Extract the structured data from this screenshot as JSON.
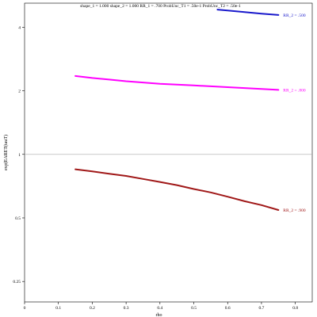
{
  "chart_data": {
    "type": "line",
    "title": "shape_1 = 1.000  shape_2 = 1.000  RR_1 = .700  ProbUnc_T1 = .50e-1  ProbUnc_T2 = .50e-1",
    "xlabel": "rho",
    "ylabel": "exp(EARET(tauT)",
    "xlim": [
      0,
      0.85
    ],
    "ylim": [
      0.2,
      5.2
    ],
    "y_scale": "log",
    "x_ticks": [
      0,
      0.1,
      0.2,
      0.3,
      0.4,
      0.5,
      0.6,
      0.7,
      0.8
    ],
    "x_tick_labels": [
      "0",
      "0.1",
      "0.2",
      "0.3",
      "0.4",
      "0.5",
      "0.6",
      "0.7",
      "0.8"
    ],
    "y_ticks": [
      0.25,
      0.5,
      1,
      2,
      4
    ],
    "y_tick_labels": [
      "0.25",
      "0.5",
      "1",
      "2",
      "4"
    ],
    "reference_line": 1,
    "grid": false,
    "series": [
      {
        "name": "RR_2 = .500",
        "color": "#1a1acc",
        "x": [
          0.57,
          0.6,
          0.65,
          0.7,
          0.75
        ],
        "y": [
          4.85,
          4.8,
          4.72,
          4.64,
          4.57
        ]
      },
      {
        "name": "RR_2 = .800",
        "color": "#ff00ff",
        "x": [
          0.15,
          0.2,
          0.25,
          0.3,
          0.35,
          0.4,
          0.45,
          0.5,
          0.55,
          0.6,
          0.65,
          0.7,
          0.75
        ],
        "y": [
          2.35,
          2.3,
          2.26,
          2.22,
          2.19,
          2.16,
          2.14,
          2.12,
          2.1,
          2.08,
          2.06,
          2.04,
          2.02
        ]
      },
      {
        "name": "RR_2 = .900",
        "color": "#a01818",
        "x": [
          0.15,
          0.2,
          0.25,
          0.3,
          0.35,
          0.4,
          0.45,
          0.5,
          0.55,
          0.6,
          0.65,
          0.7,
          0.75
        ],
        "y": [
          0.85,
          0.83,
          0.81,
          0.79,
          0.765,
          0.74,
          0.715,
          0.685,
          0.66,
          0.63,
          0.6,
          0.575,
          0.545
        ]
      }
    ]
  }
}
